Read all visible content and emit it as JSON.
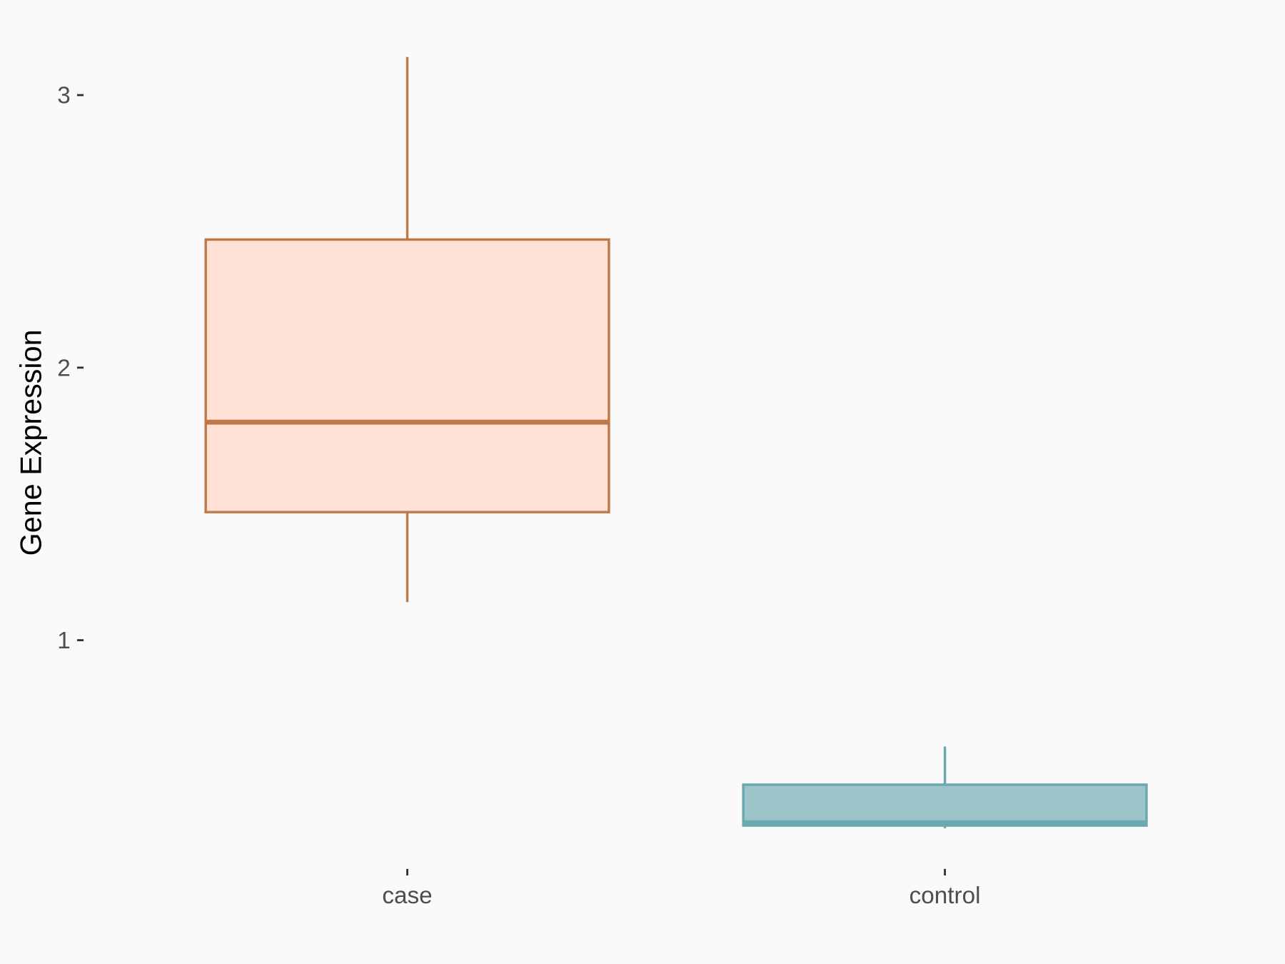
{
  "chart_data": {
    "type": "boxplot",
    "title": "",
    "xlabel": "",
    "ylabel": "Gene Expression",
    "categories": [
      "case",
      "control"
    ],
    "boxes": [
      {
        "category": "case",
        "whisker_low": 1.14,
        "q1": 1.47,
        "median": 1.8,
        "q3": 2.47,
        "whisker_high": 3.14,
        "fill": "#ffe1d6",
        "stroke": "#c07848"
      },
      {
        "category": "control",
        "whisker_low": 0.31,
        "q1": 0.32,
        "median": 0.33,
        "q3": 0.47,
        "whisker_high": 0.61,
        "fill": "#9dc4c8",
        "stroke": "#6ba8b0"
      }
    ],
    "yticks": [
      1,
      2,
      3
    ],
    "ylim": [
      0.2,
      3.25
    ],
    "grid": false,
    "legend": "none",
    "background": "#fafafa"
  }
}
